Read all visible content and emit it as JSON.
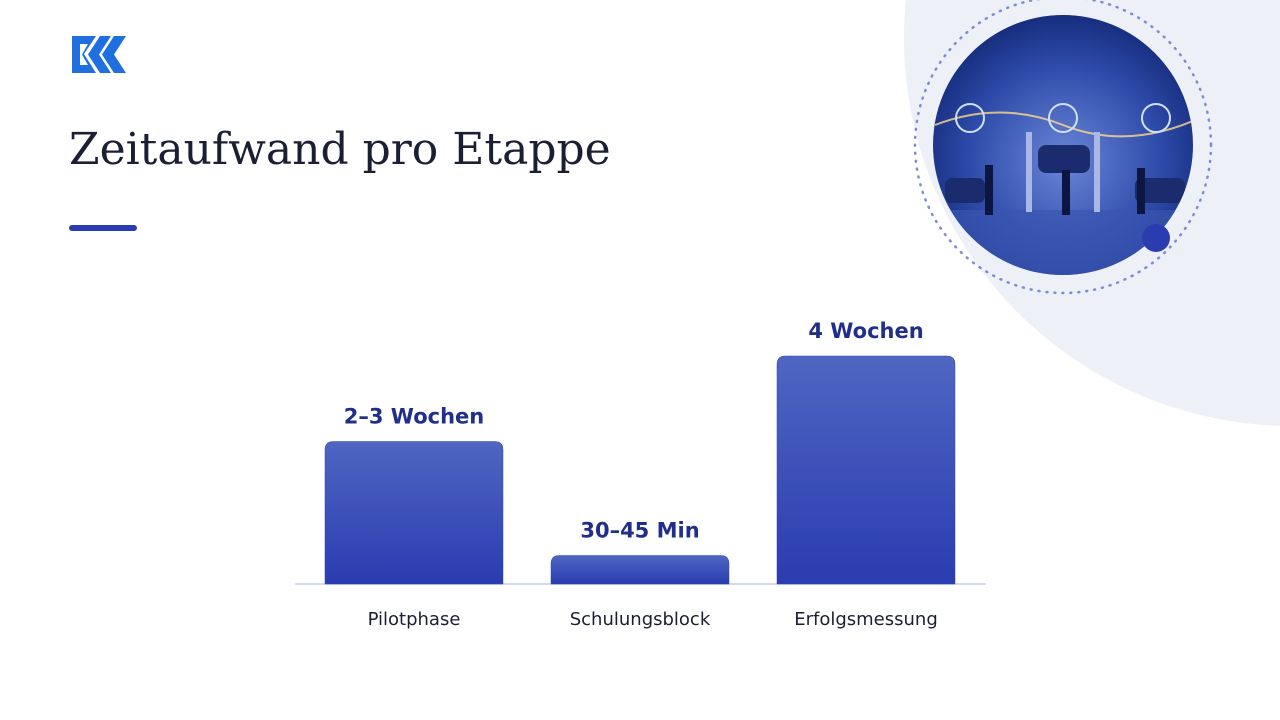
{
  "chart_data": {
    "type": "bar",
    "title": "Zeitaufwand pro Etappe",
    "categories": [
      "Pilotphase",
      "Schulungsblock",
      "Erfolgsmessung"
    ],
    "values": [
      2.5,
      0.5,
      4
    ],
    "value_labels": [
      "2–3 Wochen",
      "30–45 Min",
      "4 Wochen"
    ],
    "color": "#2f44b3"
  }
}
